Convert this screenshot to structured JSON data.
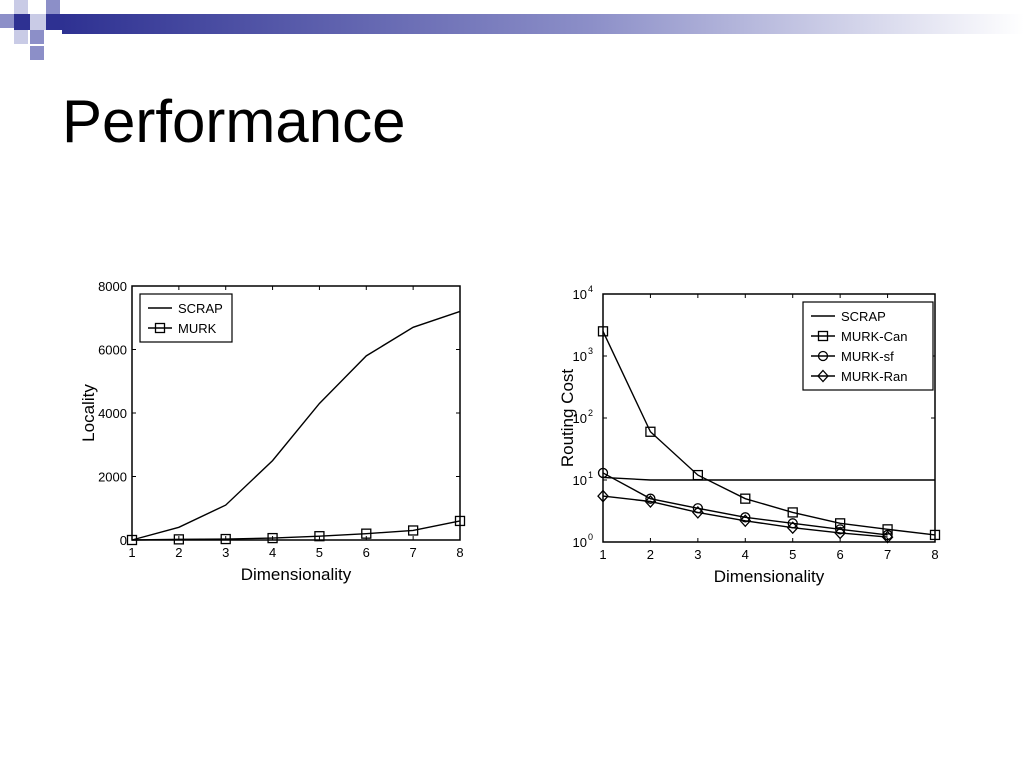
{
  "slide": {
    "title": "Performance"
  },
  "decoration": {
    "square_colors": [
      "#2e3192",
      "#8c8fc8",
      "#c9cbe6",
      "#ffffff"
    ],
    "band_color": "#2e3192"
  },
  "chart_data": [
    {
      "type": "line",
      "title": "",
      "xlabel": "Dimensionality",
      "ylabel": "Locality",
      "x": [
        1,
        2,
        3,
        4,
        5,
        6,
        7,
        8
      ],
      "xlim": [
        1,
        8
      ],
      "ylim": [
        0,
        8000
      ],
      "yticks": [
        0,
        2000,
        4000,
        6000,
        8000
      ],
      "ytick_labels": [
        "0",
        "2000",
        "4000",
        "6000",
        "8000"
      ],
      "xtick_labels": [
        "1",
        "2",
        "3",
        "4",
        "5",
        "6",
        "7",
        "8"
      ],
      "grid": false,
      "legend_position": "top-left",
      "series": [
        {
          "name": "SCRAP",
          "marker": "none",
          "values": [
            0,
            400,
            1100,
            2500,
            4300,
            5800,
            6700,
            7200
          ]
        },
        {
          "name": "MURK",
          "marker": "square",
          "values": [
            0,
            20,
            30,
            60,
            120,
            200,
            300,
            600
          ]
        }
      ]
    },
    {
      "type": "line",
      "title": "",
      "xlabel": "Dimensionality",
      "ylabel": "Routing Cost",
      "x": [
        1,
        2,
        3,
        4,
        5,
        6,
        7,
        8
      ],
      "xlim": [
        1,
        8
      ],
      "ylim": [
        1,
        10000
      ],
      "yscale": "log",
      "yticks": [
        1,
        10,
        100,
        1000,
        10000
      ],
      "ytick_labels": [
        "10",
        "10",
        "10",
        "10",
        "10"
      ],
      "ytick_exponents": [
        "0",
        "1",
        "2",
        "3",
        "4"
      ],
      "xtick_labels": [
        "1",
        "2",
        "3",
        "4",
        "5",
        "6",
        "7",
        "8"
      ],
      "grid": false,
      "legend_position": "top-right",
      "series": [
        {
          "name": "SCRAP",
          "marker": "none",
          "values": [
            11,
            10,
            10,
            10,
            10,
            10,
            10,
            10
          ]
        },
        {
          "name": "MURK-Can",
          "marker": "square",
          "values": [
            2500,
            60,
            12,
            5,
            3,
            2,
            1.6,
            1.3
          ]
        },
        {
          "name": "MURK-sf",
          "marker": "circle",
          "values": [
            13,
            5,
            3.5,
            2.5,
            2,
            1.6,
            1.3,
            null
          ]
        },
        {
          "name": "MURK-Ran",
          "marker": "diamond",
          "values": [
            5.5,
            4.5,
            3,
            2.2,
            1.7,
            1.4,
            1.2,
            null
          ]
        }
      ]
    }
  ]
}
